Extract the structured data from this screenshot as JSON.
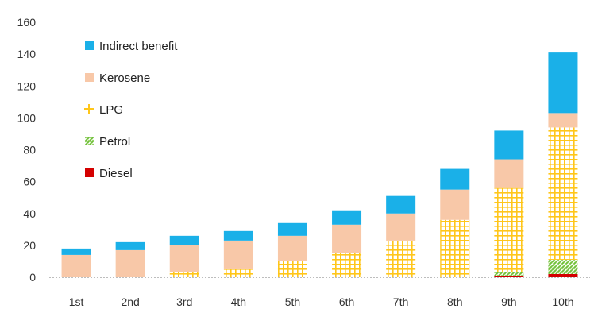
{
  "chart_data": {
    "type": "bar",
    "stacked": true,
    "categories": [
      "1st",
      "2nd",
      "3rd",
      "4th",
      "5th",
      "6th",
      "7th",
      "8th",
      "9th",
      "10th"
    ],
    "series": [
      {
        "name": "Diesel",
        "values": [
          0,
          0,
          0,
          0,
          0,
          0,
          0,
          0,
          0.5,
          2
        ],
        "color": "#d40000"
      },
      {
        "name": "Petrol",
        "values": [
          0,
          0,
          0,
          0,
          0,
          0,
          0,
          0,
          2.5,
          9
        ],
        "color": "#8cc63f"
      },
      {
        "name": "LPG",
        "values": [
          0,
          0,
          3,
          5,
          10,
          15,
          23,
          36,
          53,
          83
        ],
        "color": "#ffcc33"
      },
      {
        "name": "Kerosene",
        "values": [
          14,
          17,
          17,
          18,
          16,
          18,
          17,
          19,
          18,
          9
        ],
        "color": "#f8c8a8"
      },
      {
        "name": "Indirect benefit",
        "values": [
          4,
          5,
          6,
          6,
          8,
          9,
          11,
          13,
          18,
          38
        ],
        "color": "#1ab0e8"
      }
    ],
    "legend_order": [
      "Indirect benefit",
      "Kerosene",
      "LPG",
      "Petrol",
      "Diesel"
    ],
    "legend_placement": "top-left",
    "ylim": [
      0,
      160
    ],
    "yticks": [
      "0",
      "20",
      "40",
      "60",
      "80",
      "100",
      "120",
      "140",
      "160"
    ],
    "grid": false
  }
}
